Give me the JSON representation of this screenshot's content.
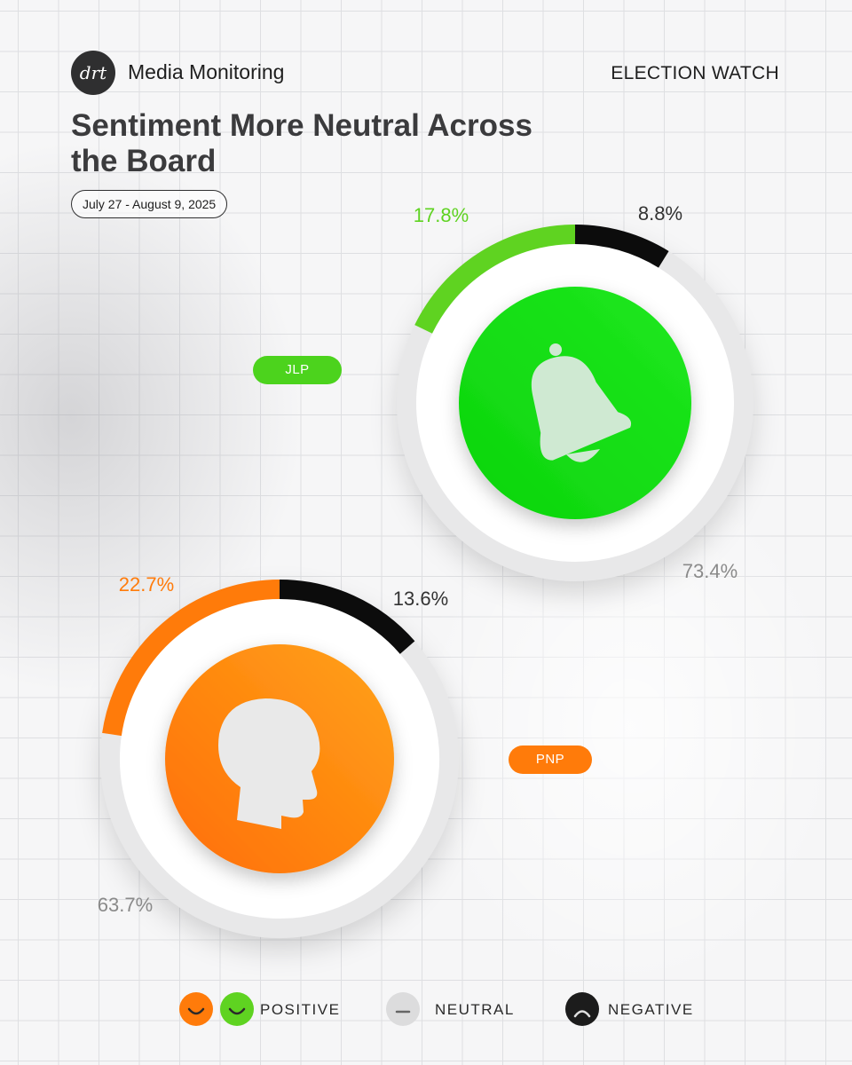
{
  "header": {
    "logo_text": "drt",
    "brand": "Media Monitoring",
    "section": "ELECTION WATCH",
    "title": "Sentiment More Neutral Across the Board",
    "date_range": "July 27 - August 9, 2025"
  },
  "chart_data": [
    {
      "type": "pie",
      "label": "JLP",
      "slices": [
        {
          "name": "Positive",
          "value": 17.8,
          "label": "17.8%"
        },
        {
          "name": "Negative",
          "value": 8.8,
          "label": "8.8%"
        },
        {
          "name": "Neutral",
          "value": 73.4,
          "label": "73.4%"
        }
      ],
      "colors": {
        "positive": "#5fd321",
        "negative": "#0c0c0c",
        "neutral": "#e8e8e9",
        "center": "#10dc10"
      },
      "center_icon": "bell-icon"
    },
    {
      "type": "pie",
      "label": "PNP",
      "slices": [
        {
          "name": "Positive",
          "value": 22.7,
          "label": "22.7%"
        },
        {
          "name": "Negative",
          "value": 13.6,
          "label": "13.6%"
        },
        {
          "name": "Neutral",
          "value": 63.7,
          "label": "63.7%"
        }
      ],
      "colors": {
        "positive": "#ff7b0a",
        "negative": "#0c0c0c",
        "neutral": "#e8e8e9",
        "center": "#ff7f08"
      },
      "center_icon": "head-icon"
    }
  ],
  "legend": {
    "positive": "POSITIVE",
    "neutral": "NEUTRAL",
    "negative": "NEGATIVE"
  }
}
